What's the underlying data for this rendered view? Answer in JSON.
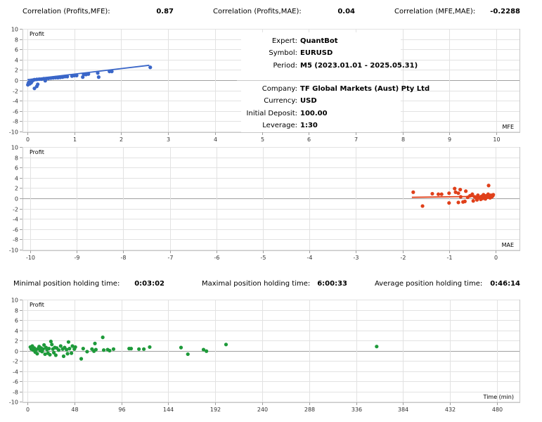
{
  "correlations": [
    {
      "label": "Correlation (Profits,MFE):",
      "value": "0.87"
    },
    {
      "label": "Correlation (Profits,MAE):",
      "value": "0.04"
    },
    {
      "label": "Correlation (MFE,MAE):",
      "value": "-0.2288"
    }
  ],
  "holding_times": [
    {
      "label": "Minimal position holding time:",
      "value": "0:03:02"
    },
    {
      "label": "Maximal position holding time:",
      "value": "6:00:33"
    },
    {
      "label": "Average position holding time:",
      "value": "0:46:14"
    }
  ],
  "info": {
    "expert_label": "Expert:",
    "expert": "QuantBot",
    "symbol_label": "Symbol:",
    "symbol": "EURUSD",
    "period_label": "Period:",
    "period": "M5 (2023.01.01 - 2025.05.31)",
    "company_label": "Company:",
    "company": "TF Global Markets (Aust) Pty Ltd",
    "currency_label": "Currency:",
    "currency": "USD",
    "deposit_label": "Initial Deposit:",
    "deposit": "100.00",
    "leverage_label": "Leverage:",
    "leverage": "1:30"
  },
  "chart_data": [
    {
      "type": "scatter",
      "ylabel": "Profit",
      "xlabel": "MFE",
      "xlim": [
        0,
        10
      ],
      "ylim": [
        -10,
        10
      ],
      "xticks": [
        0,
        1,
        2,
        3,
        4,
        5,
        6,
        7,
        8,
        9,
        10
      ],
      "yticks": [
        10,
        8,
        6,
        4,
        2,
        0,
        -2,
        -4,
        -6,
        -8,
        -10
      ],
      "grid": true,
      "color": "#3a66c8",
      "trendline": [
        [
          0,
          0.1
        ],
        [
          2.6,
          2.9
        ]
      ],
      "points": [
        [
          0.01,
          -0.9
        ],
        [
          0.02,
          -0.6
        ],
        [
          0.03,
          -0.4
        ],
        [
          0.05,
          -0.7
        ],
        [
          0.06,
          -0.3
        ],
        [
          0.08,
          -0.5
        ],
        [
          0.1,
          -0.2
        ],
        [
          0.12,
          0.0
        ],
        [
          0.15,
          -1.6
        ],
        [
          0.2,
          -1.2
        ],
        [
          0.22,
          -0.8
        ],
        [
          0.15,
          0.1
        ],
        [
          0.2,
          0.15
        ],
        [
          0.25,
          0.2
        ],
        [
          0.3,
          0.2
        ],
        [
          0.35,
          0.3
        ],
        [
          0.38,
          -0.1
        ],
        [
          0.4,
          0.3
        ],
        [
          0.45,
          0.35
        ],
        [
          0.5,
          0.4
        ],
        [
          0.55,
          0.45
        ],
        [
          0.6,
          0.5
        ],
        [
          0.65,
          0.5
        ],
        [
          0.7,
          0.55
        ],
        [
          0.75,
          0.6
        ],
        [
          0.8,
          0.7
        ],
        [
          0.85,
          0.7
        ],
        [
          0.95,
          0.8
        ],
        [
          1.0,
          0.9
        ],
        [
          1.05,
          0.9
        ],
        [
          1.18,
          0.6
        ],
        [
          1.2,
          1.1
        ],
        [
          1.25,
          1.1
        ],
        [
          1.3,
          1.2
        ],
        [
          1.5,
          1.4
        ],
        [
          1.52,
          0.6
        ],
        [
          1.75,
          1.7
        ],
        [
          1.8,
          1.7
        ],
        [
          2.62,
          2.5
        ]
      ]
    },
    {
      "type": "scatter",
      "ylabel": "Profit",
      "xlabel": "MAE",
      "xlim": [
        -10,
        0
      ],
      "ylim": [
        -10,
        10
      ],
      "xticks": [
        -10,
        -9,
        -8,
        -7,
        -6,
        -5,
        -4,
        -3,
        -2,
        -1,
        0
      ],
      "yticks": [
        10,
        8,
        6,
        4,
        2,
        0,
        -2,
        -4,
        -6,
        -8,
        -10
      ],
      "grid": true,
      "color": "#e0401a",
      "trendline": [
        [
          -1.8,
          0.2
        ],
        [
          -0.1,
          0.4
        ]
      ],
      "points": [
        [
          -1.77,
          1.2
        ],
        [
          -1.57,
          -1.5
        ],
        [
          -1.36,
          0.9
        ],
        [
          -1.23,
          0.8
        ],
        [
          -1.16,
          0.8
        ],
        [
          -1.0,
          1.0
        ],
        [
          -1.0,
          -0.9
        ],
        [
          -0.88,
          1.9
        ],
        [
          -0.86,
          1.2
        ],
        [
          -0.8,
          1.0
        ],
        [
          -0.76,
          1.7
        ],
        [
          -0.8,
          -0.8
        ],
        [
          -0.7,
          -0.7
        ],
        [
          -0.66,
          -0.6
        ],
        [
          -0.64,
          1.4
        ],
        [
          -0.75,
          0.3
        ],
        [
          -0.6,
          0.2
        ],
        [
          -0.55,
          0.5
        ],
        [
          -0.5,
          0.8
        ],
        [
          -0.48,
          -0.5
        ],
        [
          -0.45,
          0.3
        ],
        [
          -0.42,
          0.1
        ],
        [
          -0.4,
          -0.3
        ],
        [
          -0.38,
          0.6
        ],
        [
          -0.35,
          0.2
        ],
        [
          -0.32,
          -0.2
        ],
        [
          -0.3,
          0.4
        ],
        [
          -0.28,
          0.0
        ],
        [
          -0.26,
          0.7
        ],
        [
          -0.24,
          0.3
        ],
        [
          -0.22,
          -0.1
        ],
        [
          -0.2,
          0.5
        ],
        [
          -0.18,
          0.2
        ],
        [
          -0.16,
          0.8
        ],
        [
          -0.15,
          2.5
        ],
        [
          -0.14,
          0.4
        ],
        [
          -0.12,
          0.1
        ],
        [
          -0.1,
          0.6
        ],
        [
          -0.08,
          0.3
        ],
        [
          -0.06,
          0.5
        ],
        [
          -0.05,
          0.7
        ]
      ]
    },
    {
      "type": "scatter",
      "ylabel": "Profit",
      "xlabel": "Time (min)",
      "xlim": [
        0,
        480
      ],
      "ylim": [
        -10,
        10
      ],
      "xticks": [
        0,
        48,
        96,
        144,
        192,
        240,
        288,
        336,
        384,
        432,
        480
      ],
      "yticks": [
        10,
        8,
        6,
        4,
        2,
        0,
        -2,
        -4,
        -6,
        -8,
        -10
      ],
      "grid": true,
      "color": "#1e9a3a",
      "points": [
        [
          3,
          0.7
        ],
        [
          4,
          0.3
        ],
        [
          5,
          0.9
        ],
        [
          6,
          0.1
        ],
        [
          7,
          0.5
        ],
        [
          8,
          -0.3
        ],
        [
          9,
          0.2
        ],
        [
          10,
          -0.6
        ],
        [
          11,
          0.4
        ],
        [
          12,
          0.8
        ],
        [
          13,
          0.0
        ],
        [
          14,
          0.5
        ],
        [
          15,
          -0.2
        ],
        [
          16,
          0.3
        ],
        [
          17,
          1.1
        ],
        [
          18,
          -0.7
        ],
        [
          19,
          0.6
        ],
        [
          20,
          0.2
        ],
        [
          21,
          -0.5
        ],
        [
          22,
          0.4
        ],
        [
          23,
          -0.8
        ],
        [
          24,
          1.8
        ],
        [
          25,
          1.2
        ],
        [
          26,
          0.3
        ],
        [
          27,
          -0.4
        ],
        [
          28,
          0.6
        ],
        [
          29,
          -0.9
        ],
        [
          30,
          0.5
        ],
        [
          32,
          0.1
        ],
        [
          34,
          0.9
        ],
        [
          36,
          0.3
        ],
        [
          37,
          -1.1
        ],
        [
          38,
          0.6
        ],
        [
          40,
          0.2
        ],
        [
          41,
          -0.6
        ],
        [
          42,
          1.7
        ],
        [
          43,
          0.4
        ],
        [
          45,
          -0.5
        ],
        [
          46,
          0.9
        ],
        [
          48,
          0.3
        ],
        [
          49,
          0.7
        ],
        [
          55,
          -1.6
        ],
        [
          57,
          0.4
        ],
        [
          61,
          -0.2
        ],
        [
          66,
          0.3
        ],
        [
          68,
          -0.1
        ],
        [
          69,
          1.4
        ],
        [
          70,
          0.2
        ],
        [
          77,
          2.6
        ],
        [
          78,
          0.1
        ],
        [
          82,
          0.2
        ],
        [
          84,
          0.0
        ],
        [
          88,
          0.3
        ],
        [
          104,
          0.4
        ],
        [
          106,
          0.4
        ],
        [
          114,
          0.3
        ],
        [
          119,
          0.3
        ],
        [
          125,
          0.7
        ],
        [
          157,
          0.6
        ],
        [
          164,
          -0.7
        ],
        [
          180,
          0.2
        ],
        [
          183,
          -0.1
        ],
        [
          203,
          1.2
        ],
        [
          357,
          0.8
        ]
      ]
    }
  ]
}
